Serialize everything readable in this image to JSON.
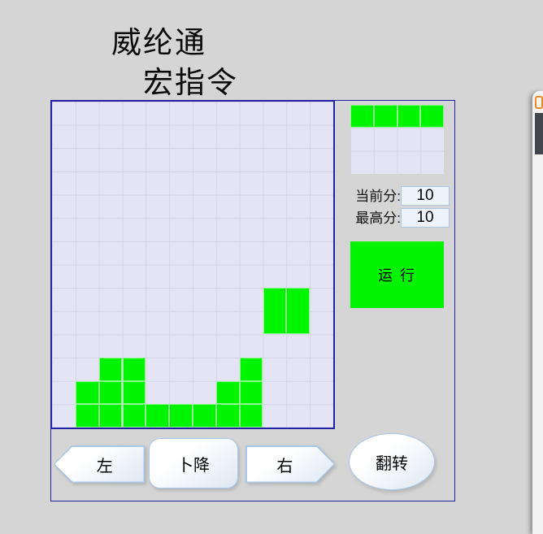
{
  "window": {
    "title_line1": "威纶通",
    "title_line2": "宏指令"
  },
  "board": {
    "cols": 12,
    "rows": 14,
    "blocks": [
      {
        "c": 2,
        "r": 11
      },
      {
        "c": 3,
        "r": 11
      },
      {
        "c": 8,
        "r": 11
      },
      {
        "c": 1,
        "r": 12
      },
      {
        "c": 2,
        "r": 12
      },
      {
        "c": 3,
        "r": 12
      },
      {
        "c": 7,
        "r": 12
      },
      {
        "c": 8,
        "r": 12
      },
      {
        "c": 1,
        "r": 13
      },
      {
        "c": 2,
        "r": 13
      },
      {
        "c": 3,
        "r": 13
      },
      {
        "c": 4,
        "r": 13
      },
      {
        "c": 5,
        "r": 13
      },
      {
        "c": 6,
        "r": 13
      },
      {
        "c": 7,
        "r": 13
      },
      {
        "c": 8,
        "r": 13
      }
    ],
    "falling_piece": [
      {
        "c": 9,
        "r": 8,
        "w": 1,
        "h": 2
      },
      {
        "c": 10,
        "r": 8,
        "w": 1,
        "h": 2
      }
    ]
  },
  "preview": {
    "cols": 4,
    "rows": 3,
    "blocks": [
      {
        "c": 0,
        "r": 0
      },
      {
        "c": 1,
        "r": 0
      },
      {
        "c": 2,
        "r": 0
      },
      {
        "c": 3,
        "r": 0
      }
    ]
  },
  "scores": {
    "current_label": "当前分:",
    "current_value": "10",
    "high_label": "最高分:",
    "high_value": "10"
  },
  "buttons": {
    "run": "运 行",
    "left": "左",
    "down": "卜降",
    "right": "右",
    "rotate": "翻转"
  },
  "side_window": {
    "icon": "orange-frame-icon"
  },
  "colors": {
    "page_bg": "#d5d5d5",
    "board_bg": "#e4e4f4",
    "grid_line": "#d4d4e4",
    "panel_border": "#2121a2",
    "block_green": "#00f400",
    "button_border": "#a9c7e8",
    "score_box_bg": "#ecf3fb",
    "score_box_border": "#aac6e4"
  }
}
